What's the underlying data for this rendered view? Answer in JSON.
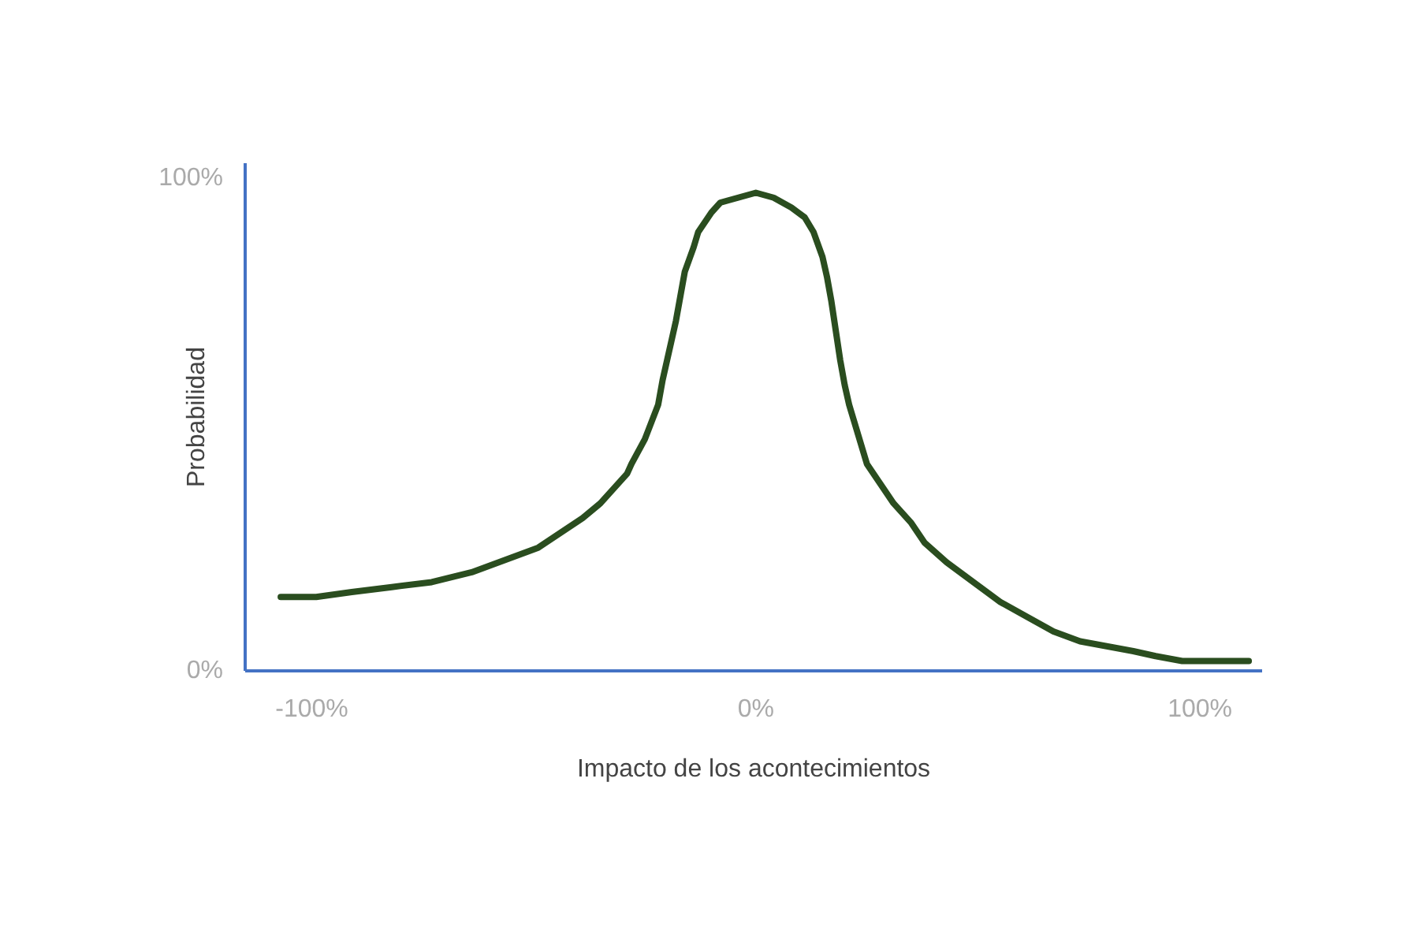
{
  "chart_data": {
    "type": "line",
    "xlabel": "Impacto de los acontecimientos",
    "ylabel": "Probabilidad",
    "x": [
      -107,
      -99,
      -91,
      -82,
      -73,
      -64,
      -55,
      -49,
      -44,
      -39,
      -35,
      -32,
      -29,
      -28,
      -25,
      -22,
      -21,
      -20,
      -19,
      -18,
      -17,
      -16,
      -14,
      -13,
      -10,
      -8,
      -4,
      0,
      4,
      8,
      11,
      13,
      15,
      16,
      17,
      18,
      19,
      20,
      21,
      22,
      25,
      28,
      31,
      35,
      38,
      43,
      49,
      55,
      61,
      67,
      73,
      79,
      85,
      90,
      96,
      103,
      111
    ],
    "values": [
      15,
      15,
      16,
      17,
      18,
      20,
      23,
      25,
      28,
      31,
      34,
      37,
      40,
      42,
      47,
      54,
      59,
      63,
      67,
      71,
      76,
      81,
      86,
      89,
      93,
      95,
      96,
      97,
      96,
      94,
      92,
      89,
      84,
      80,
      75,
      69,
      63,
      58,
      54,
      51,
      42,
      38,
      34,
      30,
      26,
      22,
      18,
      14,
      11,
      8,
      6,
      5,
      4,
      3,
      2,
      2,
      2
    ],
    "color": "#2a4d1f",
    "xlim": [
      -115,
      114
    ],
    "ylim": [
      0,
      103
    ],
    "xticks": [
      {
        "value": -100,
        "label": "-100%"
      },
      {
        "value": 0,
        "label": "0%"
      },
      {
        "value": 100,
        "label": "100%"
      }
    ],
    "yticks": [
      {
        "value": 0,
        "label": "0%"
      },
      {
        "value": 100,
        "label": "100%"
      }
    ]
  }
}
